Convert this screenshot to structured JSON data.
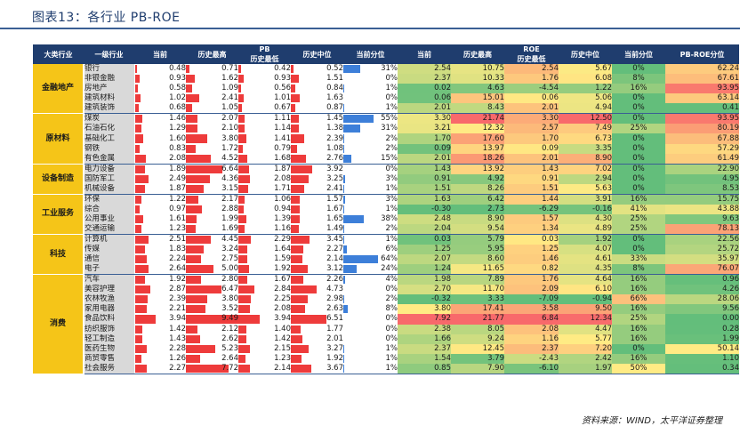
{
  "title": "图表13：各行业 PB-ROE",
  "source": "资料来源：WIND，太平洋证券整理",
  "header": {
    "major": "大类行业",
    "minor": "一级行业",
    "pb_group": "PB",
    "roe_group": "ROE",
    "cols": [
      "当前",
      "历史最高",
      "历史最低",
      "历史中位",
      "当前分位"
    ]
  },
  "colors": {
    "header_bg": "#1f3d6e",
    "major_bg": "#f5c518",
    "bar": "#ee3b3b",
    "pct_bar": "#3d7fd9",
    "heat_low": "#63be7b",
    "heat_mid": "#ffeb84",
    "heat_high": "#f8696b"
  },
  "groups": [
    {
      "name": "金融地产",
      "rows": [
        {
          "name": "银行",
          "pb": [
            "0.48",
            "0.71",
            "0.42",
            "0.52",
            "31%"
          ],
          "roe": [
            "2.54",
            "10.75",
            "2.54",
            "5.67",
            "0%"
          ]
        },
        {
          "name": "非银金融",
          "pb": [
            "0.93",
            "1.62",
            "0.93",
            "1.51",
            "0%"
          ],
          "roe": [
            "2.37",
            "10.33",
            "1.76",
            "6.08",
            "8%"
          ]
        },
        {
          "name": "房地产",
          "pb": [
            "0.58",
            "1.09",
            "0.56",
            "0.84",
            "1%"
          ],
          "roe": [
            "0.02",
            "4.63",
            "-4.54",
            "1.22",
            "16%"
          ]
        },
        {
          "name": "建筑材料",
          "pb": [
            "1.02",
            "2.41",
            "1.01",
            "1.63",
            "0%"
          ],
          "roe": [
            "0.06",
            "15.01",
            "0.06",
            "5.06",
            "0%"
          ]
        },
        {
          "name": "建筑装饰",
          "pb": [
            "0.68",
            "1.05",
            "0.67",
            "0.87",
            "1%"
          ],
          "roe": [
            "2.01",
            "8.43",
            "2.01",
            "4.94",
            "0%"
          ]
        }
      ]
    },
    {
      "name": "原材料",
      "rows": [
        {
          "name": "煤炭",
          "pb": [
            "1.46",
            "2.07",
            "1.11",
            "1.45",
            "55%"
          ],
          "roe": [
            "3.30",
            "21.74",
            "3.30",
            "12.50",
            "0%"
          ]
        },
        {
          "name": "石油石化",
          "pb": [
            "1.29",
            "2.10",
            "1.14",
            "1.38",
            "31%"
          ],
          "roe": [
            "3.21",
            "12.32",
            "2.57",
            "7.49",
            "25%"
          ]
        },
        {
          "name": "基础化工",
          "pb": [
            "1.60",
            "3.80",
            "1.41",
            "2.39",
            "2%"
          ],
          "roe": [
            "1.70",
            "17.60",
            "1.70",
            "6.73",
            "0%"
          ]
        },
        {
          "name": "钢铁",
          "pb": [
            "0.83",
            "1.72",
            "0.79",
            "1.08",
            "2%"
          ],
          "roe": [
            "0.09",
            "13.97",
            "0.09",
            "3.35",
            "0%"
          ]
        },
        {
          "name": "有色金属",
          "pb": [
            "2.08",
            "4.52",
            "1.68",
            "2.76",
            "15%"
          ],
          "roe": [
            "2.01",
            "18.26",
            "2.01",
            "8.90",
            "0%"
          ]
        }
      ]
    },
    {
      "name": "设备制造",
      "rows": [
        {
          "name": "电力设备",
          "pb": [
            "1.89",
            "6.64",
            "1.87",
            "3.92",
            "0%"
          ],
          "roe": [
            "1.43",
            "13.92",
            "1.43",
            "7.02",
            "0%"
          ]
        },
        {
          "name": "国防军工",
          "pb": [
            "2.49",
            "4.36",
            "2.08",
            "3.25",
            "3%"
          ],
          "roe": [
            "0.91",
            "4.92",
            "0.91",
            "2.94",
            "0%"
          ]
        },
        {
          "name": "机械设备",
          "pb": [
            "1.87",
            "3.15",
            "1.71",
            "2.41",
            "1%"
          ],
          "roe": [
            "1.51",
            "8.26",
            "1.51",
            "5.63",
            "0%"
          ]
        }
      ]
    },
    {
      "name": "工业服务",
      "rows": [
        {
          "name": "环保",
          "pb": [
            "1.22",
            "2.17",
            "1.06",
            "1.57",
            "3%"
          ],
          "roe": [
            "1.63",
            "6.42",
            "1.44",
            "3.91",
            "16%"
          ]
        },
        {
          "name": "综合",
          "pb": [
            "0.97",
            "2.88",
            "0.94",
            "1.67",
            "1%"
          ],
          "roe": [
            "-0.30",
            "2.73",
            "-6.29",
            "-0.16",
            "41%"
          ]
        },
        {
          "name": "公用事业",
          "pb": [
            "1.61",
            "1.99",
            "1.39",
            "1.65",
            "38%"
          ],
          "roe": [
            "2.48",
            "8.90",
            "1.57",
            "4.30",
            "25%"
          ]
        },
        {
          "name": "交通运输",
          "pb": [
            "1.23",
            "1.69",
            "1.16",
            "1.49",
            "2%"
          ],
          "roe": [
            "2.04",
            "9.54",
            "1.34",
            "4.89",
            "25%"
          ]
        }
      ]
    },
    {
      "name": "科技",
      "rows": [
        {
          "name": "计算机",
          "pb": [
            "2.51",
            "4.45",
            "2.29",
            "3.45",
            "1%"
          ],
          "roe": [
            "0.03",
            "5.79",
            "0.03",
            "1.92",
            "0%"
          ]
        },
        {
          "name": "传媒",
          "pb": [
            "1.83",
            "3.24",
            "1.64",
            "2.27",
            "6%"
          ],
          "roe": [
            "1.25",
            "5.95",
            "1.25",
            "4.07",
            "0%"
          ]
        },
        {
          "name": "通信",
          "pb": [
            "2.24",
            "2.75",
            "1.59",
            "2.14",
            "64%"
          ],
          "roe": [
            "2.07",
            "8.60",
            "1.46",
            "4.61",
            "33%"
          ]
        },
        {
          "name": "电子",
          "pb": [
            "2.64",
            "5.00",
            "1.92",
            "3.12",
            "24%"
          ],
          "roe": [
            "1.24",
            "11.65",
            "0.82",
            "4.35",
            "8%"
          ]
        }
      ]
    },
    {
      "name": "消费",
      "rows": [
        {
          "name": "汽车",
          "pb": [
            "1.92",
            "2.80",
            "1.67",
            "2.26",
            "4%"
          ],
          "roe": [
            "1.98",
            "7.89",
            "1.76",
            "4.64",
            "16%"
          ]
        },
        {
          "name": "美容护理",
          "pb": [
            "2.87",
            "6.47",
            "2.84",
            "4.73",
            "0%"
          ],
          "roe": [
            "2.70",
            "11.70",
            "2.09",
            "6.10",
            "16%"
          ]
        },
        {
          "name": "农林牧渔",
          "pb": [
            "2.39",
            "3.80",
            "2.25",
            "2.98",
            "2%"
          ],
          "roe": [
            "-0.32",
            "3.33",
            "-7.09",
            "-0.94",
            "66%"
          ]
        },
        {
          "name": "家用电器",
          "pb": [
            "2.21",
            "3.52",
            "2.08",
            "2.63",
            "8%"
          ],
          "roe": [
            "3.80",
            "17.41",
            "3.58",
            "9.50",
            "16%"
          ]
        },
        {
          "name": "食品饮料",
          "pb": [
            "3.94",
            "9.49",
            "3.94",
            "6.51",
            "0%"
          ],
          "roe": [
            "7.92",
            "21.77",
            "6.84",
            "12.34",
            "25%"
          ]
        },
        {
          "name": "纺织服饰",
          "pb": [
            "1.42",
            "2.12",
            "1.40",
            "1.77",
            "0%"
          ],
          "roe": [
            "2.38",
            "8.05",
            "2.08",
            "4.47",
            "16%"
          ]
        },
        {
          "name": "轻工制造",
          "pb": [
            "1.43",
            "2.62",
            "1.42",
            "2.01",
            "0%"
          ],
          "roe": [
            "1.66",
            "9.24",
            "1.16",
            "5.77",
            "16%"
          ]
        },
        {
          "name": "医药生物",
          "pb": [
            "2.28",
            "5.23",
            "2.15",
            "3.27",
            "1%"
          ],
          "roe": [
            "2.37",
            "12.45",
            "2.37",
            "7.20",
            "0%"
          ]
        },
        {
          "name": "商贸零售",
          "pb": [
            "1.26",
            "2.64",
            "1.23",
            "1.92",
            "1%"
          ],
          "roe": [
            "1.54",
            "3.79",
            "-2.43",
            "2.42",
            "16%"
          ]
        },
        {
          "name": "社会服务",
          "pb": [
            "2.27",
            "7.72",
            "2.14",
            "3.67",
            "1%"
          ],
          "roe": [
            "0.85",
            "7.90",
            "-6.10",
            "1.97",
            "50%"
          ]
        }
      ]
    }
  ],
  "roe_pct_right": [
    "62.24",
    "67.61",
    "93.95",
    "63.14",
    "0.41",
    "93.95",
    "80.19",
    "67.88",
    "57.29",
    "61.49",
    "22.90",
    "4.95",
    "8.53",
    "15.75",
    "43.88",
    "9.63",
    "78.13",
    "22.56",
    "25.72",
    "35.97",
    "76.07",
    "0.96",
    "4.26",
    "28.06",
    "9.56",
    "0.00",
    "0.28",
    "1.99",
    "50.14",
    "1.10",
    "0.34"
  ]
}
